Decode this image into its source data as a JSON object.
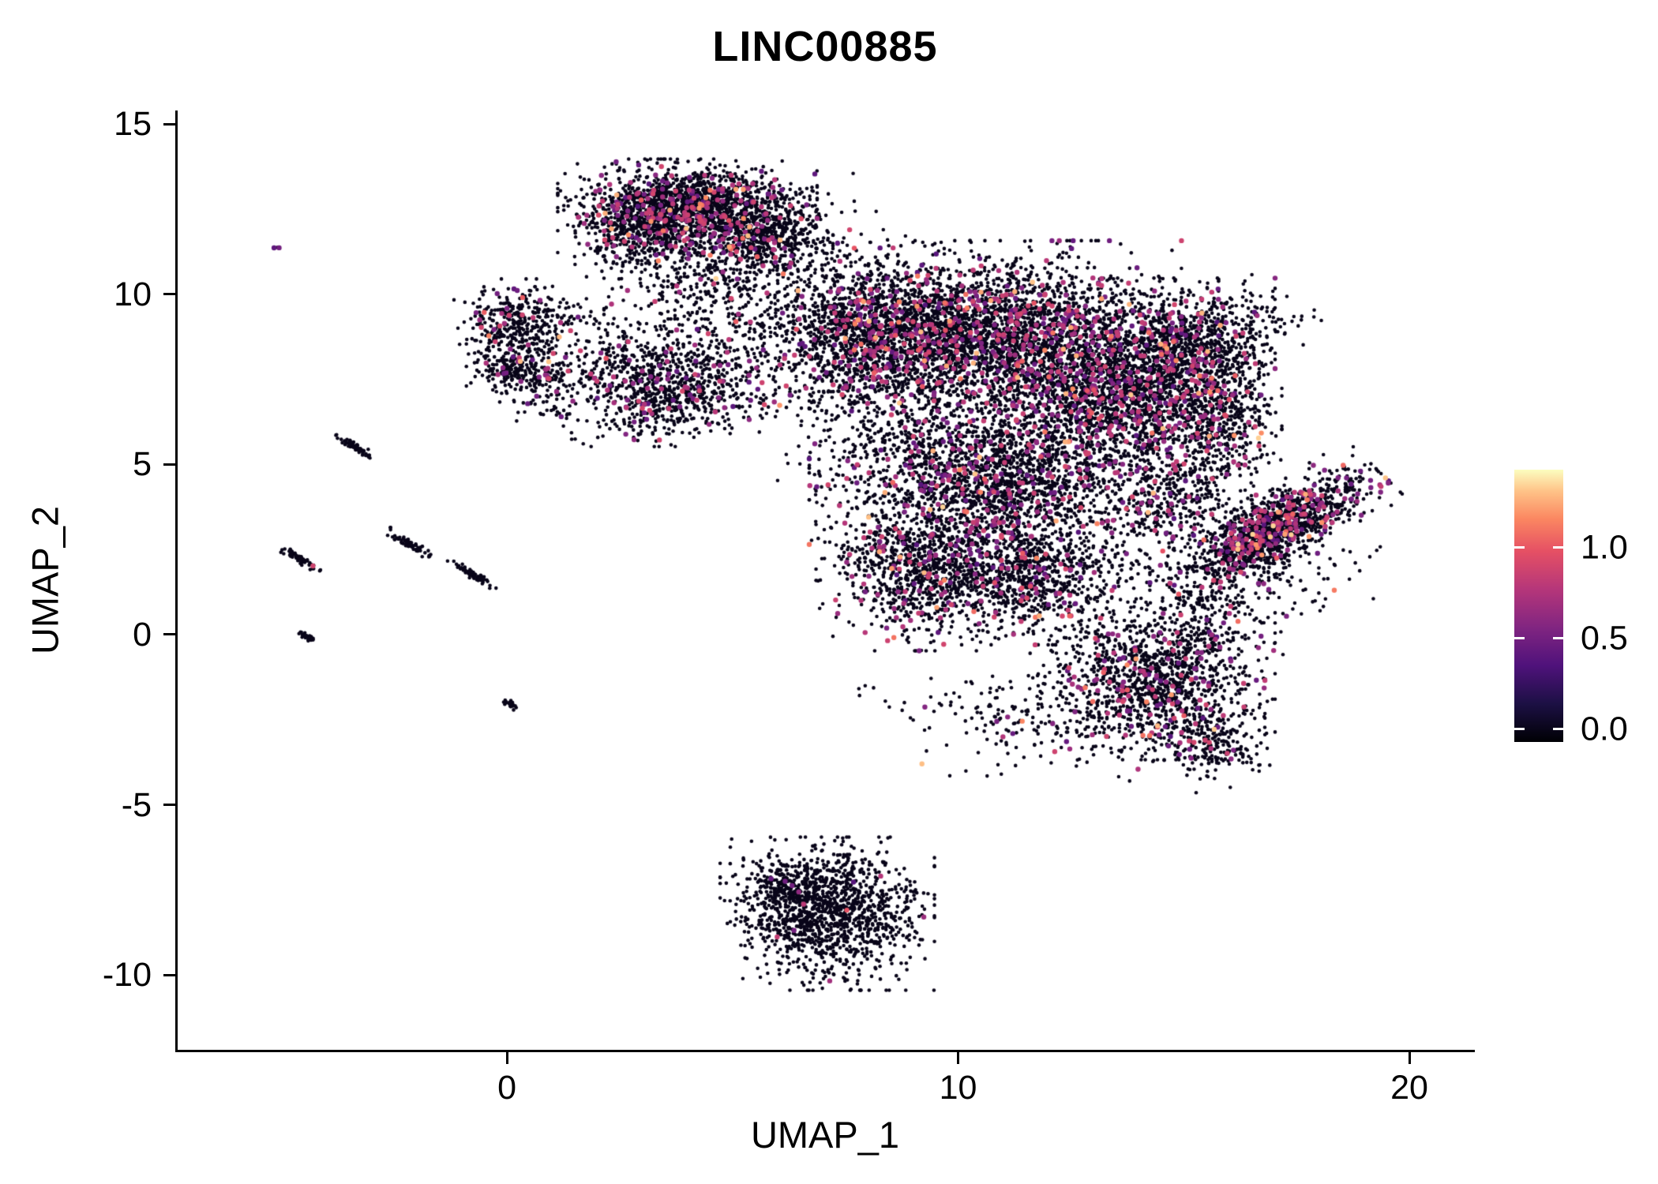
{
  "page": {
    "background": "#ffffff"
  },
  "chart_data": {
    "type": "scatter",
    "title": "LINC00885",
    "xlabel": "UMAP_1",
    "ylabel": "UMAP_2",
    "xlim": [
      -7.3,
      21.4
    ],
    "ylim": [
      -12.2,
      15.4
    ],
    "grid": false,
    "x_ticks": [
      {
        "value": 0,
        "label": "0"
      },
      {
        "value": 10,
        "label": "10"
      },
      {
        "value": 20,
        "label": "20"
      }
    ],
    "y_ticks": [
      {
        "value": 15,
        "label": "15"
      },
      {
        "value": 10,
        "label": "10"
      },
      {
        "value": 5,
        "label": "5"
      },
      {
        "value": 0,
        "label": "0"
      },
      {
        "value": -5,
        "label": "-5"
      },
      {
        "value": -10,
        "label": "-10"
      }
    ],
    "legend": {
      "position": "right",
      "colormap": "magma",
      "vmin": -0.07,
      "vmax": 1.43,
      "ticks": [
        {
          "value": 1.0,
          "label": "1.0"
        },
        {
          "value": 0.5,
          "label": "0.5"
        },
        {
          "value": 0.0,
          "label": "0.0"
        }
      ],
      "stops": [
        [
          0.0,
          [
            0,
            0,
            4
          ]
        ],
        [
          0.14,
          [
            28,
            16,
            68
          ]
        ],
        [
          0.28,
          [
            79,
            18,
            123
          ]
        ],
        [
          0.42,
          [
            129,
            37,
            129
          ]
        ],
        [
          0.56,
          [
            181,
            54,
            122
          ]
        ],
        [
          0.7,
          [
            229,
            80,
            100
          ]
        ],
        [
          0.82,
          [
            251,
            135,
            97
          ]
        ],
        [
          0.92,
          [
            254,
            194,
            135
          ]
        ],
        [
          1.0,
          [
            252,
            253,
            191
          ]
        ]
      ]
    },
    "point_style": {
      "black_radius": 2.3,
      "colored_radius": 3.2
    },
    "seed": 20885,
    "clusters": [
      {
        "name": "top-core",
        "cx": 4.0,
        "cy": 12.6,
        "sx": 1.15,
        "sy": 0.55,
        "n": 1600,
        "cf": 0.12
      },
      {
        "name": "top-right-lobe",
        "cx": 5.6,
        "cy": 11.7,
        "sx": 0.65,
        "sy": 0.5,
        "n": 500,
        "cf": 0.1
      },
      {
        "name": "top-left-lobe",
        "cx": 3.0,
        "cy": 11.7,
        "sx": 0.6,
        "sy": 0.5,
        "n": 350,
        "cf": 0.08
      },
      {
        "name": "top-tail",
        "cx": 4.4,
        "cy": 10.4,
        "sx": 0.9,
        "sy": 0.6,
        "n": 260,
        "cf": 0.05
      },
      {
        "name": "top-sparse",
        "cx": 5.2,
        "cy": 9.2,
        "sx": 1.2,
        "sy": 0.9,
        "n": 140,
        "cf": 0.03
      },
      {
        "name": "left-sat-upper",
        "cx": 0.2,
        "cy": 9.2,
        "sx": 0.55,
        "sy": 0.5,
        "n": 360,
        "cf": 0.05
      },
      {
        "name": "left-sat-lower",
        "cx": 0.35,
        "cy": 7.75,
        "sx": 0.5,
        "sy": 0.38,
        "n": 260,
        "cf": 0.07
      },
      {
        "name": "left-sat-sparse",
        "cx": 0.7,
        "cy": 6.9,
        "sx": 0.6,
        "sy": 0.45,
        "n": 50,
        "cf": 0.04
      },
      {
        "name": "left-bridge-sparse",
        "cx": 1.8,
        "cy": 8.9,
        "sx": 0.7,
        "sy": 0.6,
        "n": 55,
        "cf": 0.03
      },
      {
        "name": "midleft-cluster",
        "cx": 3.45,
        "cy": 7.4,
        "sx": 1.0,
        "sy": 0.75,
        "n": 950,
        "cf": 0.09
      },
      {
        "name": "main-upper-left",
        "cx": 8.2,
        "cy": 8.9,
        "sx": 1.25,
        "sy": 1.05,
        "n": 1800,
        "cf": 0.12
      },
      {
        "name": "main-upper-mid",
        "cx": 11.2,
        "cy": 8.7,
        "sx": 1.5,
        "sy": 1.15,
        "n": 2600,
        "cf": 0.14
      },
      {
        "name": "main-right",
        "cx": 13.8,
        "cy": 7.0,
        "sx": 1.15,
        "sy": 1.0,
        "n": 1500,
        "cf": 0.13
      },
      {
        "name": "main-center",
        "cx": 10.7,
        "cy": 4.7,
        "sx": 1.6,
        "sy": 1.1,
        "n": 2200,
        "cf": 0.12
      },
      {
        "name": "main-lower-left",
        "cx": 9.1,
        "cy": 1.9,
        "sx": 0.9,
        "sy": 0.95,
        "n": 900,
        "cf": 0.1
      },
      {
        "name": "main-lower-mid",
        "cx": 11.5,
        "cy": 1.7,
        "sx": 1.1,
        "sy": 0.8,
        "n": 900,
        "cf": 0.08
      },
      {
        "name": "main-bridge-right",
        "cx": 14.7,
        "cy": 3.9,
        "sx": 1.0,
        "sy": 0.9,
        "n": 500,
        "cf": 0.1
      },
      {
        "name": "arm-top",
        "cx": 14.9,
        "cy": 8.6,
        "sx": 0.85,
        "sy": 0.75,
        "n": 700,
        "cf": 0.12
      },
      {
        "name": "arm-right",
        "cx": 15.8,
        "cy": 6.6,
        "sx": 0.55,
        "sy": 0.95,
        "n": 500,
        "cf": 0.12
      },
      {
        "name": "arm-sparse",
        "cx": 16.3,
        "cy": 9.2,
        "sx": 0.7,
        "sy": 0.55,
        "n": 130,
        "cf": 0.08
      },
      {
        "name": "right-diag",
        "cx": 17.0,
        "cy": 3.1,
        "sx": 1.15,
        "sy": 0.42,
        "rot": 38,
        "n": 1400,
        "cf": 0.15
      },
      {
        "name": "right-diag-sparse",
        "cx": 16.4,
        "cy": 1.2,
        "sx": 1.3,
        "sy": 0.7,
        "rot": 30,
        "n": 160,
        "cf": 0.06
      },
      {
        "name": "lower-right-blob",
        "cx": 14.4,
        "cy": -1.3,
        "sx": 1.05,
        "sy": 0.95,
        "n": 1100,
        "cf": 0.1
      },
      {
        "name": "lower-right-tail",
        "cx": 15.6,
        "cy": -3.2,
        "sx": 0.5,
        "sy": 0.55,
        "rot": 45,
        "n": 220,
        "cf": 0.06
      },
      {
        "name": "lower-sparse",
        "cx": 12.3,
        "cy": -2.3,
        "sx": 1.8,
        "sy": 0.8,
        "n": 300,
        "cf": 0.05
      },
      {
        "name": "between-sparse",
        "cx": 15.2,
        "cy": 0.4,
        "sx": 0.8,
        "sy": 0.7,
        "n": 120,
        "cf": 0.06
      },
      {
        "name": "bottom-isolated",
        "cx": 7.1,
        "cy": -8.2,
        "sx": 0.95,
        "sy": 0.9,
        "n": 1250,
        "cf": 0.012
      },
      {
        "name": "bottom-isolated-edge",
        "cx": 6.4,
        "cy": -7.4,
        "sx": 0.55,
        "sy": 0.4,
        "rot": -20,
        "n": 250,
        "cf": 0.01
      },
      {
        "name": "streak-1",
        "cx": -3.35,
        "cy": 5.5,
        "sx": 0.28,
        "sy": 0.05,
        "rot": -38,
        "n": 70,
        "cf": 0
      },
      {
        "name": "streak-2",
        "cx": -2.15,
        "cy": 2.65,
        "sx": 0.28,
        "sy": 0.05,
        "rot": -38,
        "n": 65,
        "cf": 0
      },
      {
        "name": "streak-3",
        "cx": -4.55,
        "cy": 2.2,
        "sx": 0.25,
        "sy": 0.05,
        "rot": -38,
        "n": 55,
        "cf": 0.05
      },
      {
        "name": "streak-4",
        "cx": -0.75,
        "cy": 1.75,
        "sx": 0.28,
        "sy": 0.05,
        "rot": -38,
        "n": 60,
        "cf": 0
      },
      {
        "name": "streak-5",
        "cx": -4.45,
        "cy": -0.05,
        "sx": 0.12,
        "sy": 0.04,
        "rot": -38,
        "n": 25,
        "cf": 0
      },
      {
        "name": "streak-6",
        "cx": 0.1,
        "cy": -2.05,
        "sx": 0.1,
        "sy": 0.04,
        "rot": -38,
        "n": 18,
        "cf": 0
      },
      {
        "name": "outlier-dot",
        "cx": -5.15,
        "cy": 11.4,
        "sx": 0.05,
        "sy": 0.04,
        "n": 3,
        "cf": 0.7
      },
      {
        "name": "top-bridge-sparse",
        "cx": 6.8,
        "cy": 11.3,
        "sx": 0.9,
        "sy": 0.9,
        "n": 130,
        "cf": 0.04
      },
      {
        "name": "mid-gap-sparse",
        "cx": 7.3,
        "cy": 6.3,
        "sx": 0.8,
        "sy": 1.2,
        "n": 90,
        "cf": 0.04
      }
    ]
  }
}
